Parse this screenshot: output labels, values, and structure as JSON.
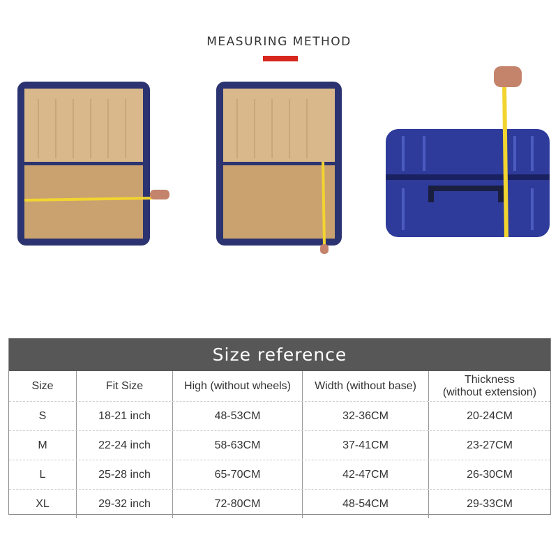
{
  "header": {
    "title": "MEASURING METHOD",
    "accent_color": "#d7261d"
  },
  "photos": [
    {
      "name": "open-suitcase-width-measure",
      "description_icon": "suitcase-open-icon"
    },
    {
      "name": "open-suitcase-height-measure",
      "description_icon": "suitcase-open-icon"
    },
    {
      "name": "closed-suitcase-thickness-measure",
      "description_icon": "suitcase-closed-icon"
    }
  ],
  "table": {
    "title": "Size reference",
    "columns": [
      "Size",
      "Fit Size",
      "High (without wheels)",
      "Width (without base)",
      "Thickness\n(without extension)"
    ],
    "rows": [
      [
        "S",
        "18-21 inch",
        "48-53CM",
        "32-36CM",
        "20-24CM"
      ],
      [
        "M",
        "22-24 inch",
        "58-63CM",
        "37-41CM",
        "23-27CM"
      ],
      [
        "L",
        "25-28 inch",
        "65-70CM",
        "42-47CM",
        "26-30CM"
      ],
      [
        "XL",
        "29-32 inch",
        "72-80CM",
        "48-54CM",
        "29-33CM"
      ]
    ]
  }
}
